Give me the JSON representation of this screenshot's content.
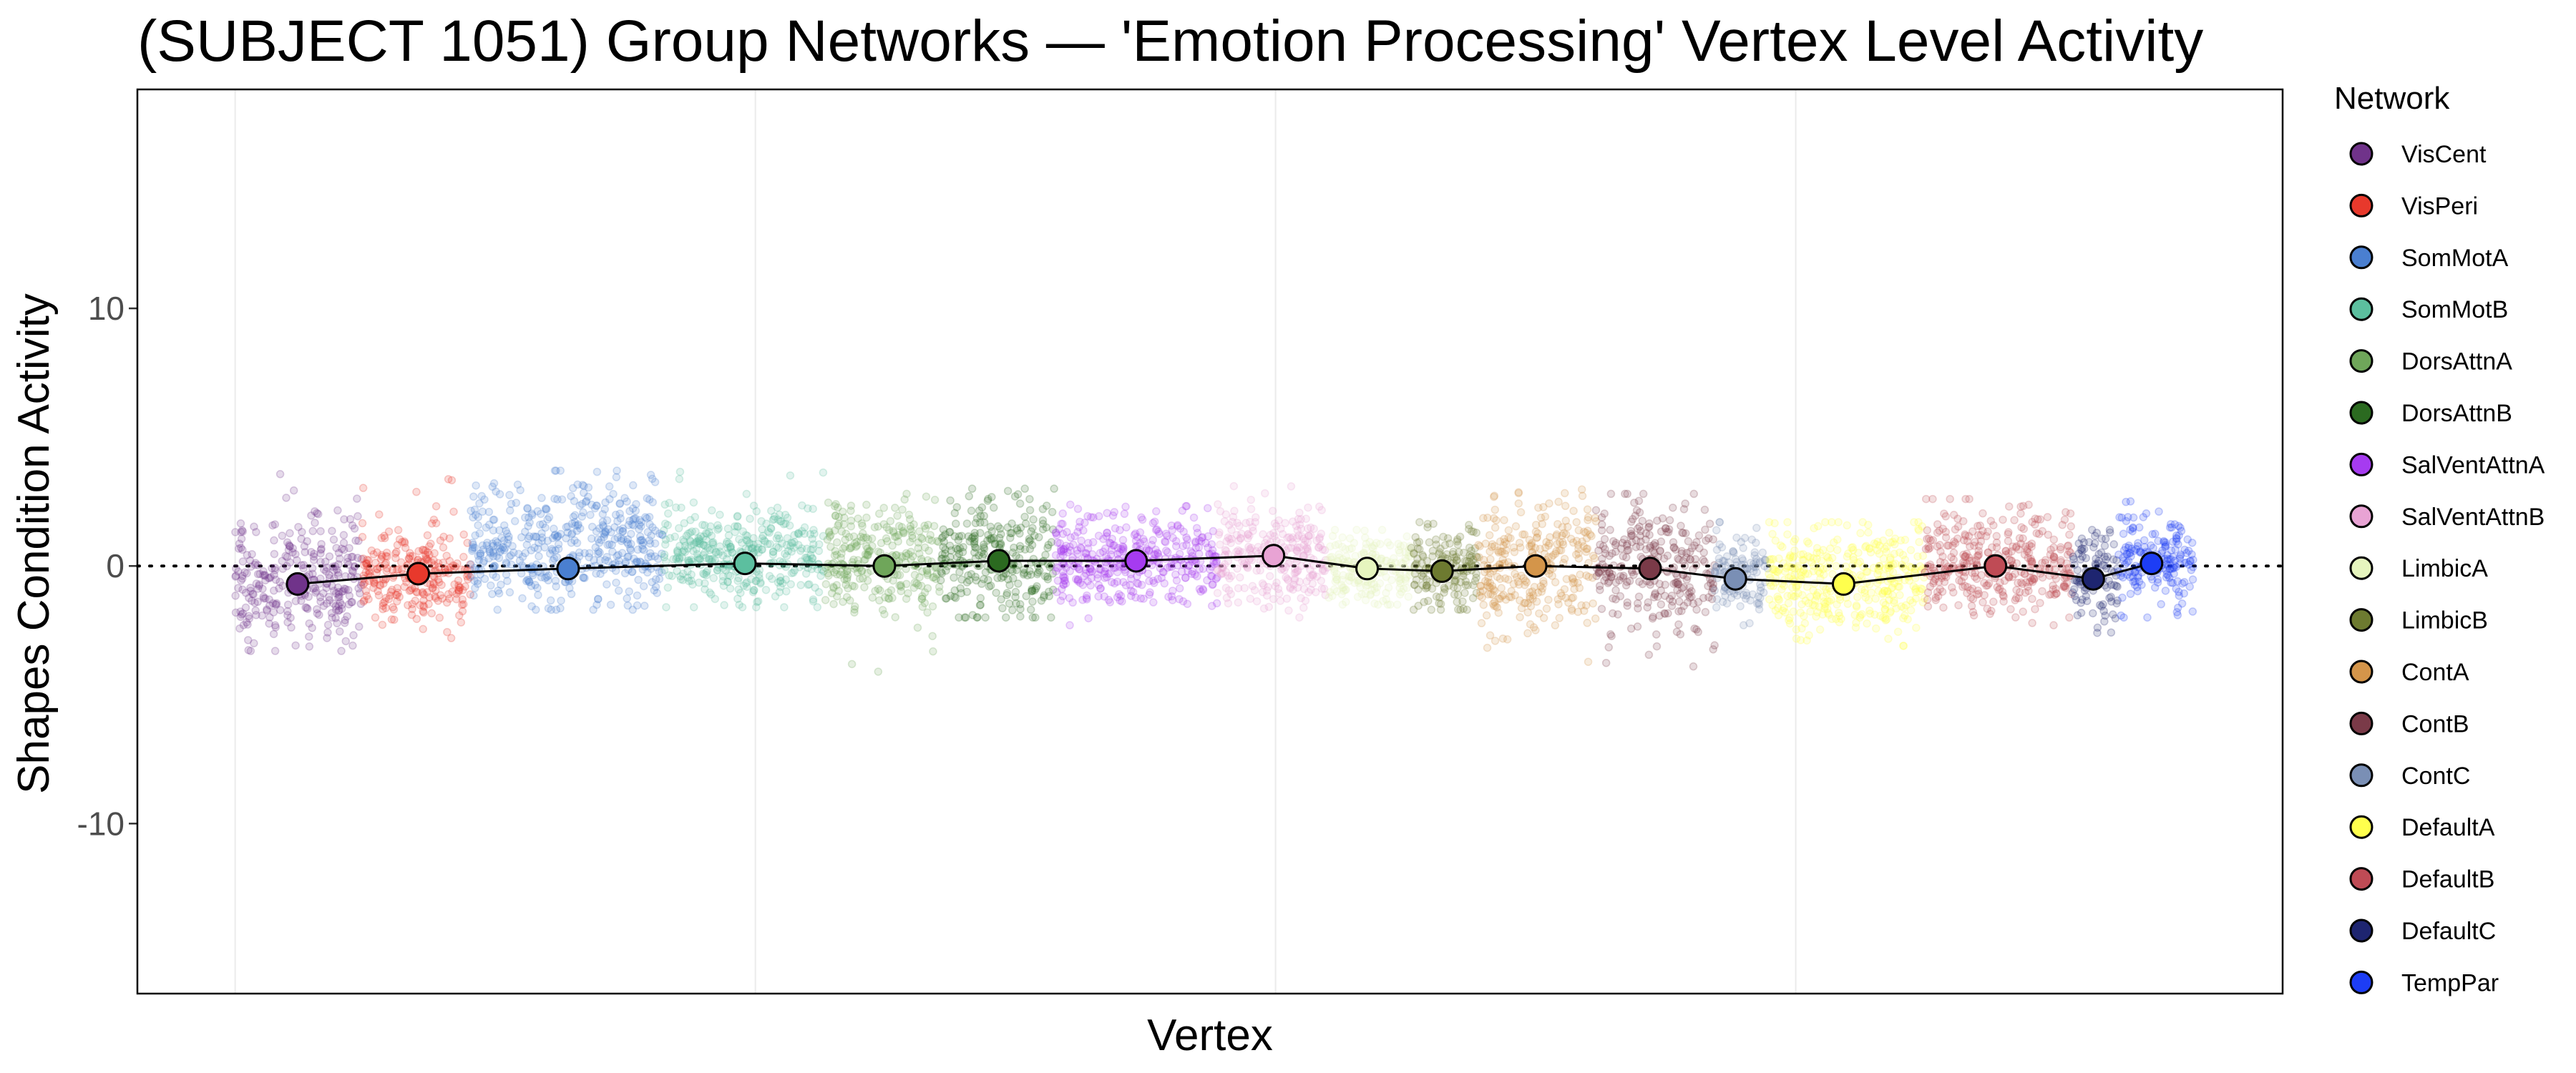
{
  "chart_data": {
    "type": "scatter",
    "title": "(SUBJECT 1051) Group Networks — 'Emotion Processing' Vertex Level Activity",
    "xlabel": "Vertex",
    "ylabel": "Shapes Condition Activity",
    "xlim": [
      -47,
      984
    ],
    "ylim": [
      -16.6,
      18.5
    ],
    "x_gridlines": [
      0,
      250,
      500,
      750
    ],
    "y_ticks": [
      {
        "value": 10,
        "label": "10"
      },
      {
        "value": 0,
        "label": "0"
      },
      {
        "value": -10,
        "label": "-10"
      }
    ],
    "reference_line": {
      "y": 0,
      "style": "dotted"
    },
    "grid": true,
    "legend": {
      "title": "Network",
      "position": "right"
    },
    "series": [
      {
        "name": "VisCent",
        "color": "#70338A",
        "x_range": [
          0,
          61
        ],
        "mean_x": 30,
        "mean": -0.7,
        "core": [
          -2.5,
          1.5
        ],
        "extent": [
          -3.3,
          3.7
        ]
      },
      {
        "name": "VisPeri",
        "color": "#E8392C",
        "x_range": [
          61,
          113
        ],
        "mean_x": 88,
        "mean": -0.3,
        "core": [
          -1.8,
          0.9
        ],
        "extent": [
          -2.8,
          3.5
        ]
      },
      {
        "name": "SomMotA",
        "color": "#4A7FD0",
        "x_range": [
          113,
          206
        ],
        "mean_x": 160,
        "mean": -0.1,
        "core": [
          -1.2,
          2.6
        ],
        "extent": [
          -1.7,
          3.7
        ]
      },
      {
        "name": "SomMotB",
        "color": "#5CBF9F",
        "x_range": [
          206,
          283
        ],
        "mean_x": 245,
        "mean": 0.1,
        "core": [
          -1.0,
          1.8
        ],
        "extent": [
          -1.6,
          3.8
        ]
      },
      {
        "name": "DorsAttnA",
        "color": "#6FA65A",
        "x_range": [
          283,
          339
        ],
        "mean_x": 312,
        "mean": 0.0,
        "core": [
          -1.5,
          2.0
        ],
        "extent": [
          -4.3,
          2.8
        ]
      },
      {
        "name": "DorsAttnB",
        "color": "#2B6A20",
        "x_range": [
          339,
          394
        ],
        "mean_x": 367,
        "mean": 0.2,
        "core": [
          -1.6,
          2.2
        ],
        "extent": [
          -2.0,
          3.0
        ]
      },
      {
        "name": "SalVentAttnA",
        "color": "#A63BF0",
        "x_range": [
          394,
          472
        ],
        "mean_x": 433,
        "mean": 0.2,
        "core": [
          -1.0,
          1.6
        ],
        "extent": [
          -2.3,
          2.4
        ]
      },
      {
        "name": "SalVentAttnB",
        "color": "#E8A3D4",
        "x_range": [
          472,
          525
        ],
        "mean_x": 499,
        "mean": 0.4,
        "core": [
          -1.2,
          2.0
        ],
        "extent": [
          -2.0,
          3.1
        ]
      },
      {
        "name": "LimbicA",
        "color": "#E6F5BE",
        "x_range": [
          525,
          565
        ],
        "mean_x": 544,
        "mean": -0.1,
        "core": [
          -1.2,
          1.0
        ],
        "extent": [
          -1.5,
          1.4
        ]
      },
      {
        "name": "LimbicB",
        "color": "#6D7A30",
        "x_range": [
          565,
          597
        ],
        "mean_x": 580,
        "mean": -0.2,
        "core": [
          -1.4,
          1.2
        ],
        "extent": [
          -1.7,
          1.7
        ]
      },
      {
        "name": "ContA",
        "color": "#D4954A",
        "x_range": [
          597,
          654
        ],
        "mean_x": 625,
        "mean": 0.0,
        "core": [
          -2.0,
          2.3
        ],
        "extent": [
          -4.0,
          3.1
        ]
      },
      {
        "name": "ContB",
        "color": "#7A3A48",
        "x_range": [
          654,
          711
        ],
        "mean_x": 680,
        "mean": -0.1,
        "core": [
          -2.2,
          1.8
        ],
        "extent": [
          -3.9,
          2.8
        ]
      },
      {
        "name": "ContC",
        "color": "#7A8FB5",
        "x_range": [
          711,
          737
        ],
        "mean_x": 721,
        "mean": -0.5,
        "core": [
          -1.6,
          0.9
        ],
        "extent": [
          -2.3,
          1.7
        ]
      },
      {
        "name": "DefaultA",
        "color": "#FFFF4D",
        "x_range": [
          737,
          812
        ],
        "mean_x": 773,
        "mean": -0.7,
        "core": [
          -2.2,
          1.4
        ],
        "extent": [
          -3.1,
          1.7
        ]
      },
      {
        "name": "DefaultB",
        "color": "#BF4B55",
        "x_range": [
          812,
          883
        ],
        "mean_x": 846,
        "mean": 0.0,
        "core": [
          -1.5,
          1.9
        ],
        "extent": [
          -2.3,
          2.6
        ]
      },
      {
        "name": "DefaultC",
        "color": "#1E2570",
        "x_range": [
          883,
          905
        ],
        "mean_x": 893,
        "mean": -0.5,
        "core": [
          -1.8,
          1.0
        ],
        "extent": [
          -4.0,
          1.4
        ]
      },
      {
        "name": "TempPar",
        "color": "#1D3DF5",
        "x_range": [
          905,
          941
        ],
        "mean_x": 921,
        "mean": 0.1,
        "core": [
          -1.2,
          1.6
        ],
        "extent": [
          -2.0,
          2.8
        ]
      }
    ]
  }
}
